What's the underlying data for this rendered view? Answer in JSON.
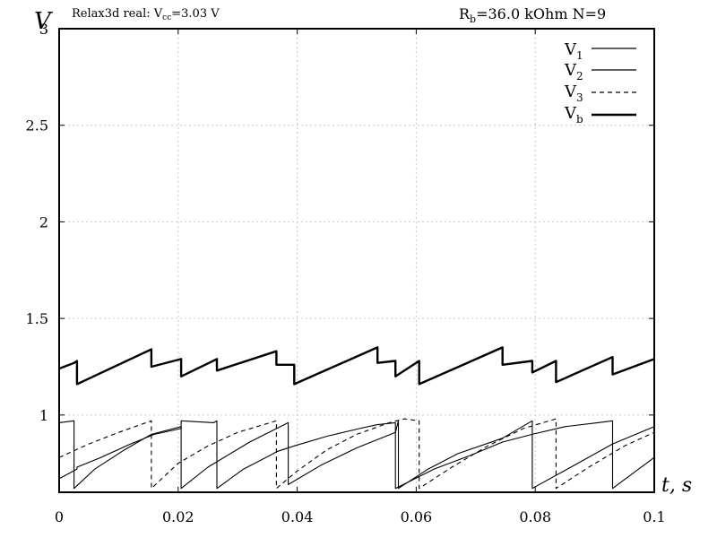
{
  "chart_data": {
    "type": "line",
    "title_left": "Relax3d real: V",
    "title_left_sub": "cc",
    "title_left_value": "=3.03 V",
    "title_right_prefix": "R",
    "title_right_sub": "b",
    "title_right_value": "=36.0 kOhm N=9",
    "ylabel": "V",
    "xlabel": "t, s",
    "xlim": [
      0,
      0.1
    ],
    "ylim": [
      0.6,
      3.0
    ],
    "xticks": [
      0,
      0.02,
      0.04,
      0.06,
      0.08,
      0.1
    ],
    "xtick_labels": [
      "0",
      "0.02",
      "0.04",
      "0.06",
      "0.08",
      "0.1"
    ],
    "yticks": [
      1,
      1.5,
      2,
      2.5,
      3
    ],
    "ytick_labels": [
      "1",
      "1.5",
      "2",
      "2.5",
      "3"
    ],
    "grid": true,
    "legend_position": "top-right",
    "legend": [
      {
        "name": "V",
        "sub": "1",
        "style": "solid"
      },
      {
        "name": "V",
        "sub": "2",
        "style": "solid"
      },
      {
        "name": "V",
        "sub": "3",
        "style": "dashed"
      },
      {
        "name": "V",
        "sub": "b",
        "style": "thick"
      }
    ],
    "series": [
      {
        "name": "V1",
        "style": "solid",
        "x": [
          0,
          0.003,
          0.003,
          0.007,
          0.012,
          0.016,
          0.0205,
          0.0205,
          0.026,
          0.0265,
          0.0265,
          0.031,
          0.036,
          0.0365,
          0.0395,
          0.0395,
          0.045,
          0.0505,
          0.0535,
          0.0535,
          0.0565,
          0.0565,
          0.063,
          0.069,
          0.0745,
          0.0745,
          0.0795,
          0.0795,
          0.085,
          0.0905,
          0.093,
          0.093,
          0.1
        ],
        "y": [
          0.67,
          0.72,
          0.73,
          0.78,
          0.85,
          0.9,
          0.93,
          0.97,
          0.96,
          0.97,
          0.62,
          0.72,
          0.8,
          0.81,
          0.84,
          0.84,
          0.89,
          0.93,
          0.95,
          0.95,
          0.96,
          0.62,
          0.72,
          0.79,
          0.86,
          0.86,
          0.9,
          0.9,
          0.94,
          0.96,
          0.97,
          0.62,
          0.78
        ]
      },
      {
        "name": "V2",
        "style": "solid",
        "x": [
          0,
          0.0025,
          0.0025,
          0.006,
          0.011,
          0.0155,
          0.0205,
          0.0205,
          0.025,
          0.032,
          0.0385,
          0.0385,
          0.044,
          0.05,
          0.0565,
          0.057,
          0.057,
          0.062,
          0.067,
          0.0745,
          0.0795,
          0.0795,
          0.086,
          0.093,
          0.1
        ],
        "y": [
          0.96,
          0.97,
          0.62,
          0.72,
          0.82,
          0.9,
          0.94,
          0.62,
          0.73,
          0.86,
          0.96,
          0.64,
          0.74,
          0.83,
          0.91,
          0.97,
          0.62,
          0.72,
          0.8,
          0.88,
          0.97,
          0.62,
          0.73,
          0.85,
          0.94
        ]
      },
      {
        "name": "V3",
        "style": "dashed",
        "x": [
          0,
          0.005,
          0.01,
          0.0155,
          0.0155,
          0.02,
          0.025,
          0.03,
          0.0365,
          0.0365,
          0.04,
          0.045,
          0.05,
          0.0555,
          0.058,
          0.0605,
          0.0605,
          0.066,
          0.072,
          0.078,
          0.0835,
          0.0835,
          0.089,
          0.095,
          0.1
        ],
        "y": [
          0.78,
          0.85,
          0.91,
          0.97,
          0.62,
          0.75,
          0.84,
          0.91,
          0.97,
          0.62,
          0.71,
          0.82,
          0.9,
          0.96,
          0.98,
          0.97,
          0.62,
          0.73,
          0.84,
          0.93,
          0.98,
          0.62,
          0.73,
          0.84,
          0.91
        ]
      },
      {
        "name": "Vb",
        "style": "thick",
        "x": [
          0,
          0.0025,
          0.003,
          0.003,
          0.0155,
          0.0155,
          0.0205,
          0.0205,
          0.0265,
          0.0265,
          0.0365,
          0.0365,
          0.0395,
          0.0395,
          0.0535,
          0.0535,
          0.0565,
          0.0565,
          0.0605,
          0.0605,
          0.0745,
          0.0745,
          0.0795,
          0.0795,
          0.0835,
          0.0835,
          0.093,
          0.093,
          0.1
        ],
        "y": [
          1.24,
          1.27,
          1.28,
          1.16,
          1.34,
          1.25,
          1.29,
          1.2,
          1.29,
          1.23,
          1.33,
          1.26,
          1.26,
          1.16,
          1.35,
          1.27,
          1.28,
          1.2,
          1.28,
          1.16,
          1.35,
          1.26,
          1.28,
          1.22,
          1.28,
          1.17,
          1.3,
          1.21,
          1.29
        ]
      }
    ]
  }
}
